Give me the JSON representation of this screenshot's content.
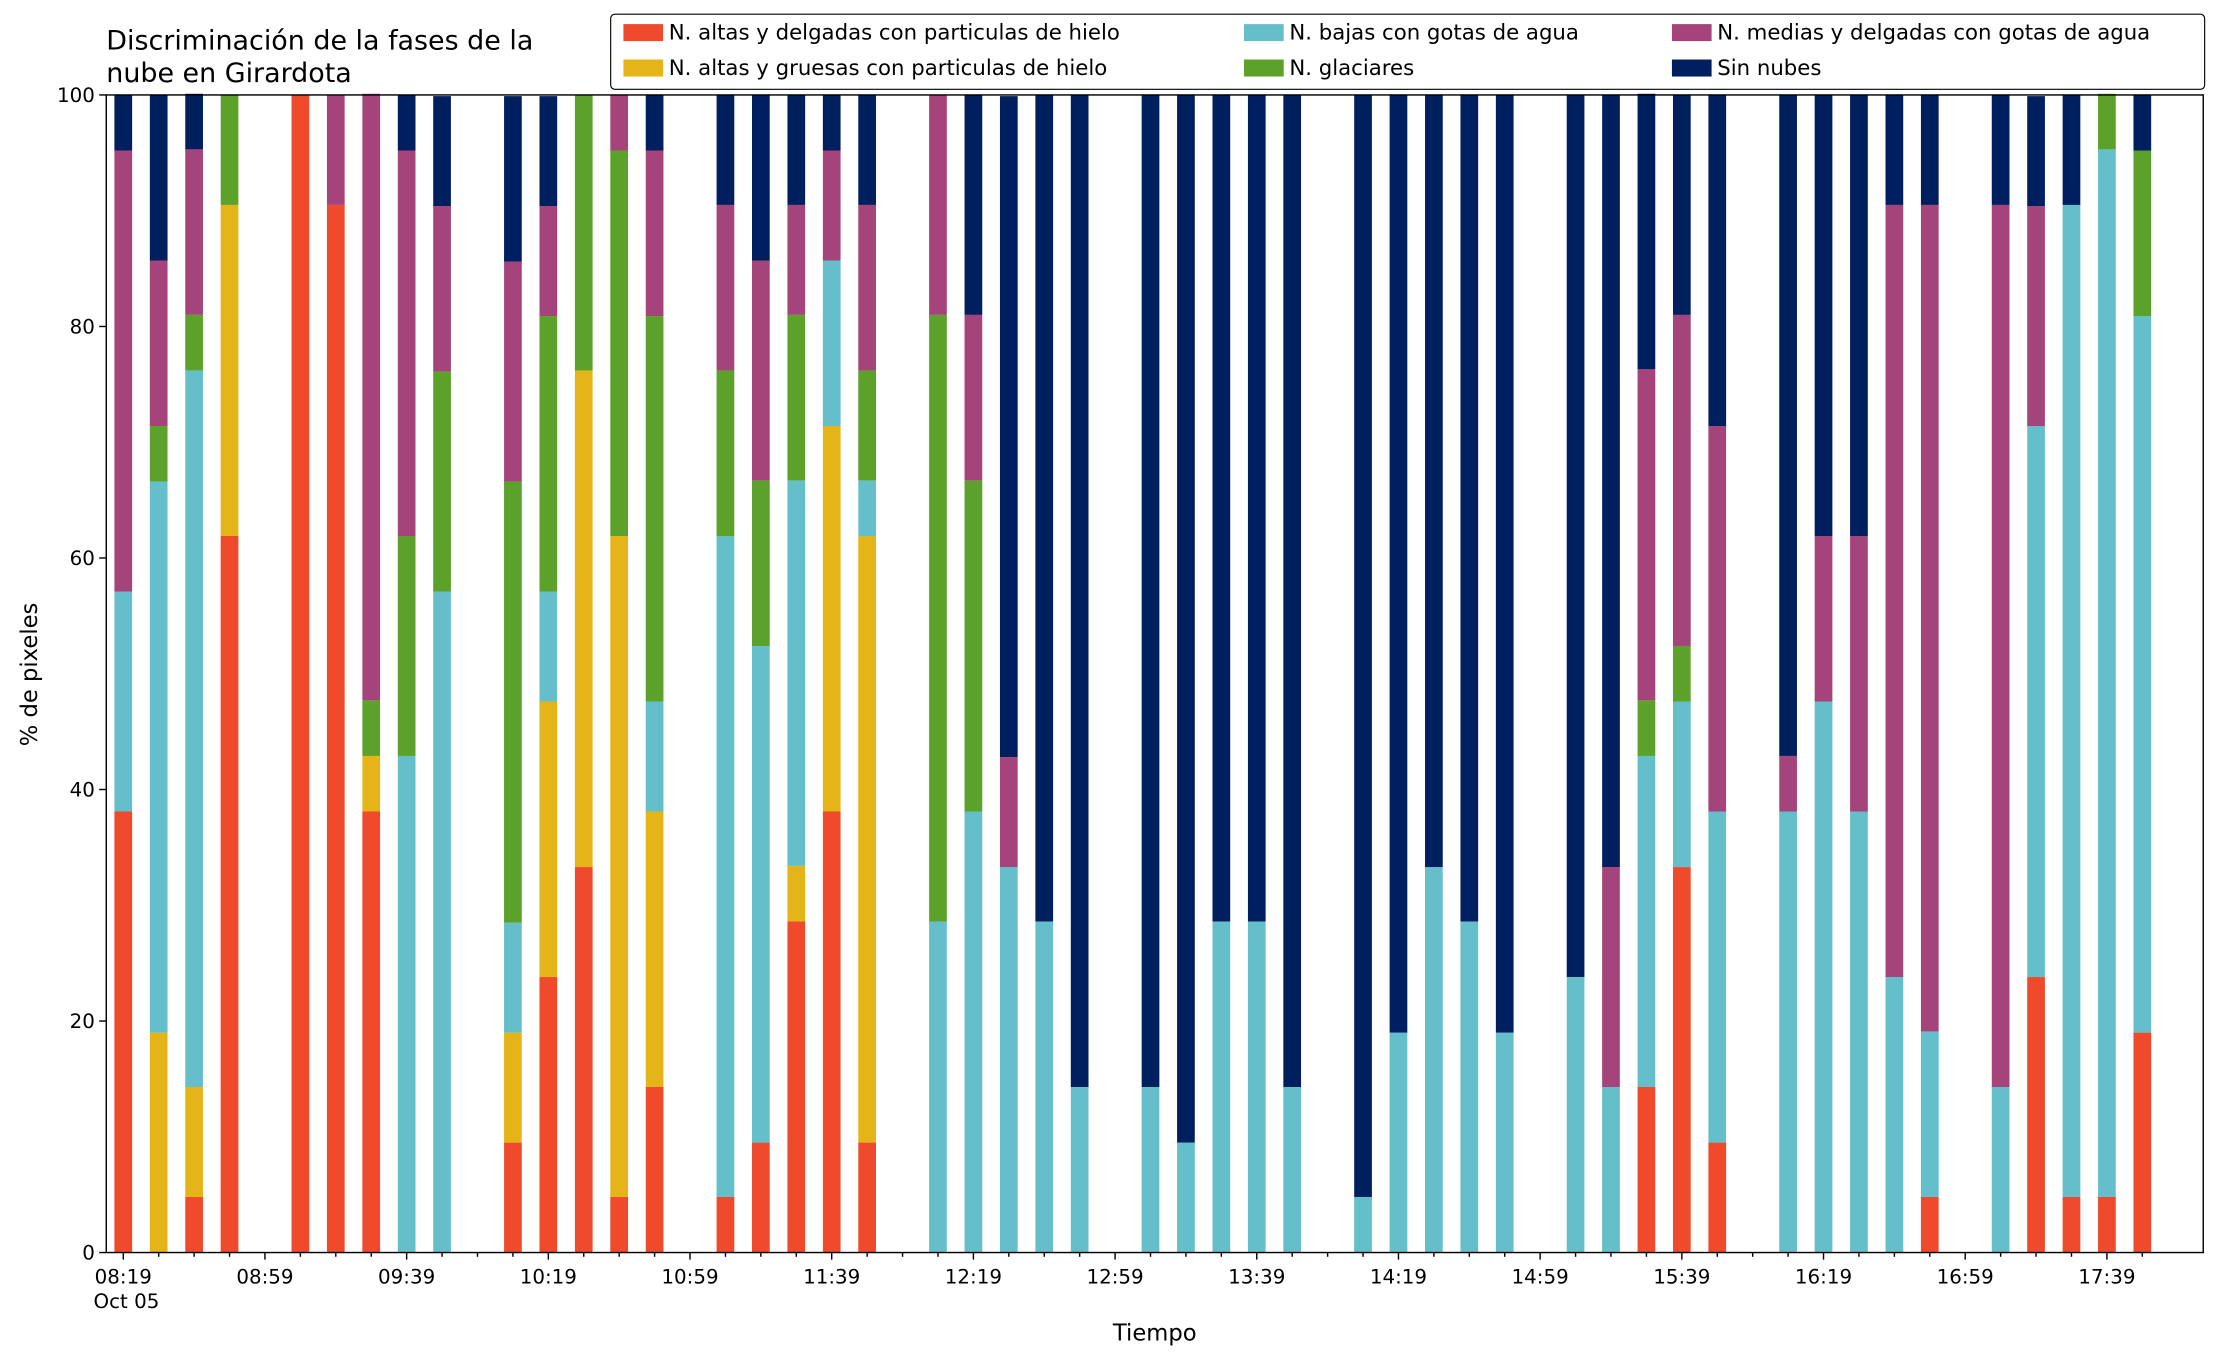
{
  "chart_data": {
    "type": "stacked_bar",
    "title": "Discriminación de la fases de la\nnube en Girardota",
    "xlabel": "Tiempo",
    "ylabel": "% de pixeles",
    "date_label": "Oct 05",
    "categories": [
      "08:19",
      null,
      null,
      null,
      "08:59",
      null,
      null,
      null,
      "09:39",
      null,
      null,
      null,
      "10:19",
      null,
      null,
      null,
      "10:59",
      null,
      null,
      null,
      "11:39",
      null,
      null,
      null,
      "12:19",
      null,
      null,
      null,
      "12:59",
      null,
      null,
      null,
      "13:39",
      null,
      null,
      null,
      "14:19",
      null,
      null,
      null,
      "14:59",
      null,
      null,
      null,
      "15:39",
      null,
      null,
      null,
      "16:19",
      null,
      null,
      null,
      "16:59",
      null,
      null,
      null,
      "17:39",
      null
    ],
    "ylim": [
      0,
      100
    ],
    "yticks": [
      0,
      20,
      40,
      60,
      80,
      100
    ],
    "legend": "top",
    "series": [
      {
        "name": "N. altas y delgadas con particulas de hielo",
        "color": "#ee4a2b",
        "values": [
          38.1,
          0,
          4.8,
          61.9,
          null,
          100,
          90.5,
          38.1,
          0,
          0,
          null,
          9.5,
          23.8,
          33.3,
          4.8,
          14.3,
          null,
          4.8,
          9.5,
          28.6,
          38.1,
          9.5,
          null,
          0,
          0,
          0,
          0,
          0,
          null,
          0,
          0,
          0,
          0,
          0,
          null,
          0,
          0,
          0,
          0,
          0,
          null,
          0,
          0,
          14.3,
          33.3,
          9.5,
          null,
          0,
          0,
          0,
          0,
          4.8,
          null,
          0,
          23.8,
          4.8,
          4.8,
          19.0
        ]
      },
      {
        "name": "N. altas y gruesas con particulas de hielo",
        "color": "#e5b418",
        "values": [
          0,
          19.0,
          9.5,
          28.6,
          null,
          0,
          0,
          4.8,
          0,
          0,
          null,
          9.5,
          23.8,
          42.9,
          57.1,
          23.8,
          null,
          0,
          0,
          4.8,
          33.3,
          52.4,
          null,
          0,
          0,
          0,
          0,
          0,
          null,
          0,
          0,
          0,
          0,
          0,
          null,
          0,
          0,
          0,
          0,
          0,
          null,
          0,
          0,
          0,
          0,
          0,
          null,
          0,
          0,
          0,
          0,
          0,
          null,
          0,
          0,
          0,
          0,
          0
        ]
      },
      {
        "name": "N. bajas con gotas de agua",
        "color": "#65bfcb",
        "values": [
          19.0,
          47.6,
          61.9,
          0,
          null,
          0,
          0,
          0,
          42.9,
          57.1,
          null,
          9.5,
          9.5,
          0,
          0,
          9.5,
          null,
          57.1,
          42.9,
          33.3,
          14.3,
          4.8,
          null,
          28.6,
          38.1,
          33.3,
          28.6,
          14.3,
          null,
          14.3,
          9.5,
          28.6,
          28.6,
          14.3,
          null,
          4.8,
          19.0,
          33.3,
          28.6,
          19.0,
          null,
          23.8,
          14.3,
          28.6,
          14.3,
          28.6,
          null,
          38.1,
          47.6,
          38.1,
          23.8,
          14.3,
          null,
          14.3,
          47.6,
          85.7,
          90.5,
          61.9
        ]
      },
      {
        "name": "N. glaciares",
        "color": "#5ca12a",
        "values": [
          0,
          4.8,
          4.8,
          9.5,
          null,
          0,
          0,
          4.8,
          19.0,
          19.0,
          null,
          38.1,
          23.8,
          23.8,
          33.3,
          33.3,
          null,
          14.3,
          14.3,
          14.3,
          0,
          9.5,
          null,
          52.4,
          28.6,
          0,
          0,
          0,
          null,
          0,
          0,
          0,
          0,
          0,
          null,
          0,
          0,
          0,
          0,
          0,
          null,
          0,
          0,
          4.8,
          4.8,
          0,
          null,
          0,
          0,
          0,
          0,
          0,
          null,
          0,
          0,
          0,
          4.8,
          14.3
        ]
      },
      {
        "name": "N. medias y delgadas con gotas de agua",
        "color": "#a4447b",
        "values": [
          38.1,
          14.3,
          14.3,
          0,
          null,
          0,
          9.5,
          52.4,
          33.3,
          14.3,
          null,
          19.0,
          9.5,
          0,
          4.8,
          14.3,
          null,
          14.3,
          19.0,
          9.5,
          9.5,
          14.3,
          null,
          19.0,
          14.3,
          9.5,
          0,
          0,
          null,
          0,
          0,
          0,
          0,
          0,
          null,
          0,
          0,
          0,
          0,
          0,
          null,
          0,
          19.0,
          28.6,
          28.6,
          33.3,
          null,
          4.8,
          14.3,
          23.8,
          66.7,
          71.4,
          null,
          76.2,
          19.0,
          0,
          0,
          0
        ]
      },
      {
        "name": "Sin nubes",
        "color": "#001f5f",
        "values": [
          4.8,
          14.3,
          4.8,
          0,
          null,
          0,
          0,
          0,
          4.8,
          9.5,
          null,
          14.3,
          9.5,
          0,
          0,
          4.8,
          null,
          9.5,
          14.3,
          9.5,
          4.8,
          9.5,
          null,
          0,
          19.0,
          57.1,
          71.4,
          85.7,
          null,
          85.7,
          90.5,
          71.4,
          71.4,
          85.7,
          null,
          95.2,
          81.0,
          66.7,
          71.4,
          81.0,
          null,
          76.2,
          66.7,
          23.8,
          19.0,
          28.6,
          null,
          57.1,
          38.1,
          38.1,
          9.5,
          9.5,
          null,
          9.5,
          9.5,
          9.5,
          0,
          4.8
        ]
      }
    ]
  }
}
